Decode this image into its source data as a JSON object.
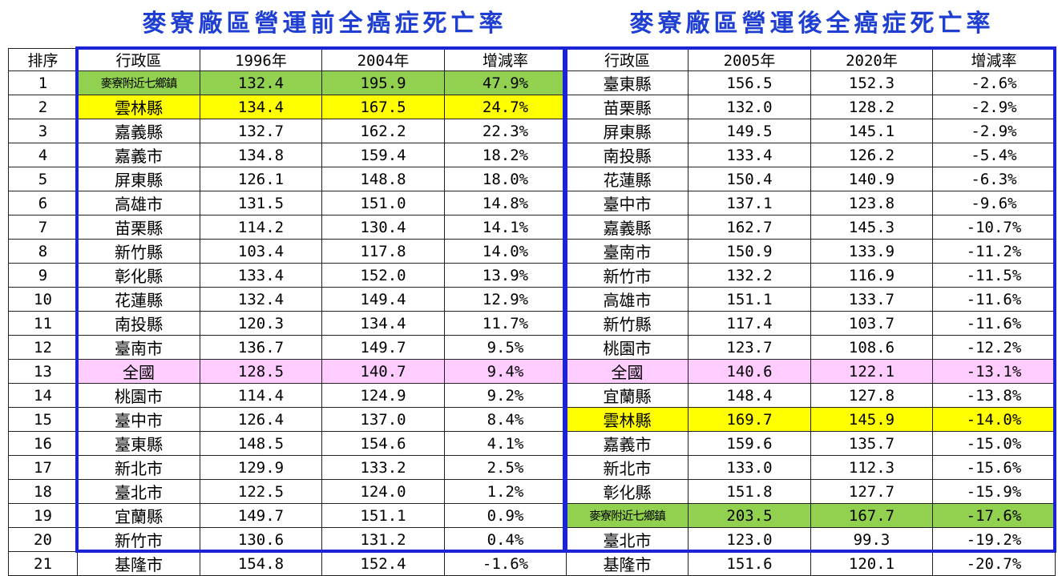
{
  "titles": {
    "left": "麥寮廠區營運前全癌症死亡率",
    "right": "麥寮廠區營運後全癌症死亡率"
  },
  "headers": {
    "rank": "排序",
    "left_region": "行政區",
    "left_y1": "1996年",
    "left_y2": "2004年",
    "left_rate": "增減率",
    "right_region": "行政區",
    "right_y1": "2005年",
    "right_y2": "2020年",
    "right_rate": "增減率"
  },
  "highlight_colors": {
    "green": "#92d050",
    "yellow": "#ffff00",
    "pink": "#ffccff",
    "frame": "#1a24d6",
    "title": "#1f3fd2"
  },
  "rows": [
    {
      "rank": "1",
      "l": [
        "麥寮附近七鄉鎮",
        "132.4",
        "195.9",
        "47.9%"
      ],
      "lh": "green",
      "r": [
        "臺東縣",
        "156.5",
        "152.3",
        "-2.6%"
      ],
      "rh": ""
    },
    {
      "rank": "2",
      "l": [
        "雲林縣",
        "134.4",
        "167.5",
        "24.7%"
      ],
      "lh": "yellow",
      "r": [
        "苗栗縣",
        "132.0",
        "128.2",
        "-2.9%"
      ],
      "rh": ""
    },
    {
      "rank": "3",
      "l": [
        "嘉義縣",
        "132.7",
        "162.2",
        "22.3%"
      ],
      "lh": "",
      "r": [
        "屏東縣",
        "149.5",
        "145.1",
        "-2.9%"
      ],
      "rh": ""
    },
    {
      "rank": "4",
      "l": [
        "嘉義市",
        "134.8",
        "159.4",
        "18.2%"
      ],
      "lh": "",
      "r": [
        "南投縣",
        "133.4",
        "126.2",
        "-5.4%"
      ],
      "rh": ""
    },
    {
      "rank": "5",
      "l": [
        "屏東縣",
        "126.1",
        "148.8",
        "18.0%"
      ],
      "lh": "",
      "r": [
        "花蓮縣",
        "150.4",
        "140.9",
        "-6.3%"
      ],
      "rh": ""
    },
    {
      "rank": "6",
      "l": [
        "高雄市",
        "131.5",
        "151.0",
        "14.8%"
      ],
      "lh": "",
      "r": [
        "臺中市",
        "137.1",
        "123.8",
        "-9.6%"
      ],
      "rh": ""
    },
    {
      "rank": "7",
      "l": [
        "苗栗縣",
        "114.2",
        "130.4",
        "14.1%"
      ],
      "lh": "",
      "r": [
        "嘉義縣",
        "162.7",
        "145.3",
        "-10.7%"
      ],
      "rh": ""
    },
    {
      "rank": "8",
      "l": [
        "新竹縣",
        "103.4",
        "117.8",
        "14.0%"
      ],
      "lh": "",
      "r": [
        "臺南市",
        "150.9",
        "133.9",
        "-11.2%"
      ],
      "rh": ""
    },
    {
      "rank": "9",
      "l": [
        "彰化縣",
        "133.4",
        "152.0",
        "13.9%"
      ],
      "lh": "",
      "r": [
        "新竹市",
        "132.2",
        "116.9",
        "-11.5%"
      ],
      "rh": ""
    },
    {
      "rank": "10",
      "l": [
        "花蓮縣",
        "132.4",
        "149.4",
        "12.9%"
      ],
      "lh": "",
      "r": [
        "高雄市",
        "151.1",
        "133.7",
        "-11.6%"
      ],
      "rh": ""
    },
    {
      "rank": "11",
      "l": [
        "南投縣",
        "120.3",
        "134.4",
        "11.7%"
      ],
      "lh": "",
      "r": [
        "新竹縣",
        "117.4",
        "103.7",
        "-11.6%"
      ],
      "rh": ""
    },
    {
      "rank": "12",
      "l": [
        "臺南市",
        "136.7",
        "149.7",
        "9.5%"
      ],
      "lh": "",
      "r": [
        "桃園市",
        "123.7",
        "108.6",
        "-12.2%"
      ],
      "rh": ""
    },
    {
      "rank": "13",
      "l": [
        "全國",
        "128.5",
        "140.7",
        "9.4%"
      ],
      "lh": "pink",
      "r": [
        "全國",
        "140.6",
        "122.1",
        "-13.1%"
      ],
      "rh": "pink"
    },
    {
      "rank": "14",
      "l": [
        "桃園市",
        "114.4",
        "124.9",
        "9.2%"
      ],
      "lh": "",
      "r": [
        "宜蘭縣",
        "148.4",
        "127.8",
        "-13.8%"
      ],
      "rh": ""
    },
    {
      "rank": "15",
      "l": [
        "臺中市",
        "126.4",
        "137.0",
        "8.4%"
      ],
      "lh": "",
      "r": [
        "雲林縣",
        "169.7",
        "145.9",
        "-14.0%"
      ],
      "rh": "yellow"
    },
    {
      "rank": "16",
      "l": [
        "臺東縣",
        "148.5",
        "154.6",
        "4.1%"
      ],
      "lh": "",
      "r": [
        "嘉義市",
        "159.6",
        "135.7",
        "-15.0%"
      ],
      "rh": ""
    },
    {
      "rank": "17",
      "l": [
        "新北市",
        "129.9",
        "133.2",
        "2.5%"
      ],
      "lh": "",
      "r": [
        "新北市",
        "133.0",
        "112.3",
        "-15.6%"
      ],
      "rh": ""
    },
    {
      "rank": "18",
      "l": [
        "臺北市",
        "122.5",
        "124.0",
        "1.2%"
      ],
      "lh": "",
      "r": [
        "彰化縣",
        "151.8",
        "127.7",
        "-15.9%"
      ],
      "rh": ""
    },
    {
      "rank": "19",
      "l": [
        "宜蘭縣",
        "149.7",
        "151.1",
        "0.9%"
      ],
      "lh": "",
      "r": [
        "麥寮附近七鄉鎮",
        "203.5",
        "167.7",
        "-17.6%"
      ],
      "rh": "green"
    },
    {
      "rank": "20",
      "l": [
        "新竹市",
        "130.6",
        "131.2",
        "0.4%"
      ],
      "lh": "",
      "r": [
        "臺北市",
        "123.0",
        "99.3",
        "-19.2%"
      ],
      "rh": ""
    },
    {
      "rank": "21",
      "l": [
        "基隆市",
        "154.8",
        "152.4",
        "-1.6%"
      ],
      "lh": "",
      "r": [
        "基隆市",
        "151.6",
        "120.1",
        "-20.7%"
      ],
      "rh": ""
    }
  ]
}
